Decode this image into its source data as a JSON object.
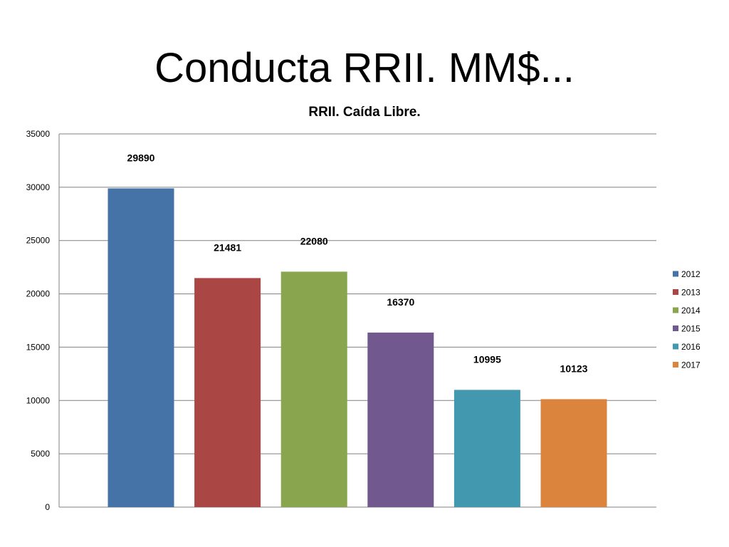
{
  "slide": {
    "title": "Conducta RRII. MM$..."
  },
  "chart_data": {
    "type": "bar",
    "title": "RRII. Caída Libre.",
    "xlabel": "",
    "ylabel": "",
    "ylim": [
      0,
      35000
    ],
    "yticks": [
      0,
      5000,
      10000,
      15000,
      20000,
      25000,
      30000,
      35000
    ],
    "grid": true,
    "legend_position": "right",
    "series": [
      {
        "name": "2012",
        "value": 29890,
        "color": "#4572A7"
      },
      {
        "name": "2013",
        "value": 21481,
        "color": "#AA4643"
      },
      {
        "name": "2014",
        "value": 22080,
        "color": "#89A54E"
      },
      {
        "name": "2015",
        "value": 16370,
        "color": "#71588F"
      },
      {
        "name": "2016",
        "value": 10995,
        "color": "#4198AF"
      },
      {
        "name": "2017",
        "value": 10123,
        "color": "#DB843D"
      }
    ],
    "data_labels": true
  }
}
